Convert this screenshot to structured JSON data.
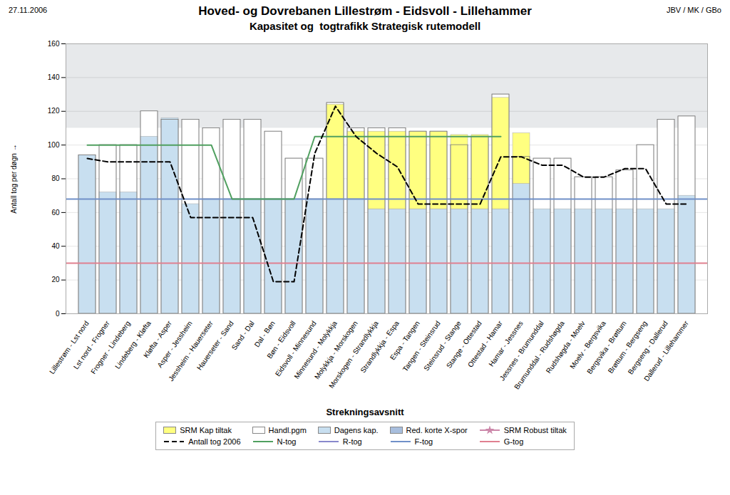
{
  "chart_data": {
    "type": "bar",
    "title": "Hoved- og Dovrebanen Lillestrøm - Eidsvoll - Lillehammer",
    "subtitle": "Kapasitet og  togtrafikk Strategisk rutemodell",
    "annotations": [
      "27.11.2006",
      "JBV / MK / GBo"
    ],
    "x_label": "Strekningsavsnitt",
    "y_label": "Antall tog per døgn",
    "categories": [
      "Lillestrøm - Lst nord",
      "Lst nord - Frogner",
      "Frogner - Lindeberg",
      "Lindeberg - Kløfta",
      "Kløfta - Asper",
      "Asper - Jessheim",
      "Jessheim - Hauerseter",
      "Hauerseter - Sand",
      "Sand - Dal",
      "Dal - Bøn",
      "Bøn - Eidsvoll",
      "Eidsvoll - Minnesund",
      "Minnesund - Molykkja",
      "Molykkja - Morskogen",
      "Morskogen - Strandlykkja",
      "Strandlykkja - Espa",
      "Espa - Tangen",
      "Tangen - Steinsrud",
      "Steinsrud - Stange",
      "Stange - Ottestad",
      "Ottestad - Hamar",
      "Hamar - Jessnes",
      "Jessnes - Brumunddal",
      "Brumunddal - Rudshøgda",
      "Rudshøgda - Moelv",
      "Moelv - Bergsvika",
      "Bergsvika - Brøttum",
      "Brøttum - Bergseng",
      "Bergseng - Dallerud",
      "Dallerud - Lillehammer"
    ],
    "series": [
      {
        "name": "SRM Kap tiltak",
        "type": "bar",
        "stacked": true,
        "color": "#ffff80",
        "values": [
          0,
          0,
          0,
          0,
          0,
          0,
          0,
          0,
          0,
          0,
          0,
          0,
          56,
          40,
          46,
          46,
          46,
          46,
          44,
          44,
          66,
          30,
          0,
          0,
          0,
          0,
          0,
          0,
          0,
          0
        ]
      },
      {
        "name": "Handl.pgm",
        "type": "bar",
        "stacked": false,
        "color": "#ffffff",
        "values": [
          94,
          100,
          100,
          120,
          115,
          115,
          110,
          115,
          115,
          108,
          92,
          92,
          125,
          110,
          110,
          110,
          108,
          108,
          100,
          105,
          130,
          93,
          92,
          92,
          81,
          81,
          85,
          100,
          115,
          117
        ]
      },
      {
        "name": "Dagens kap.",
        "type": "bar",
        "stacked": true,
        "color": "#c8dff0",
        "values": [
          94,
          72,
          72,
          105,
          116,
          65,
          68,
          68,
          68,
          68,
          68,
          68,
          68,
          68,
          62,
          62,
          62,
          62,
          62,
          62,
          62,
          77,
          62,
          62,
          62,
          62,
          62,
          62,
          62,
          70
        ]
      },
      {
        "name": "Red. korte X-spor",
        "type": "bar",
        "color": "#a8bedd",
        "values": [
          null,
          null,
          null,
          null,
          null,
          null,
          null,
          null,
          null,
          null,
          null,
          null,
          null,
          null,
          null,
          null,
          null,
          null,
          null,
          null,
          null,
          null,
          null,
          null,
          null,
          null,
          null,
          null,
          null,
          null
        ]
      },
      {
        "name": "SRM Robust tiltak",
        "type": "line",
        "marker": "star",
        "color": "#cc88aa",
        "values": [
          null,
          null,
          null,
          null,
          null,
          null,
          null,
          null,
          null,
          null,
          null,
          null,
          null,
          null,
          null,
          null,
          null,
          null,
          null,
          null,
          null,
          null,
          null,
          null,
          null,
          null,
          null,
          null,
          null,
          null
        ]
      },
      {
        "name": "Antall tog 2006",
        "type": "line",
        "line_style": "dashed",
        "color": "#000000",
        "values": [
          92,
          90,
          90,
          90,
          90,
          57,
          57,
          57,
          57,
          19,
          19,
          95,
          123,
          105,
          95,
          87,
          65,
          65,
          65,
          65,
          93,
          93,
          88,
          88,
          81,
          81,
          86,
          86,
          65,
          65
        ]
      },
      {
        "name": "N-tog",
        "type": "line",
        "color": "#50a060",
        "values": [
          100,
          100,
          100,
          100,
          100,
          100,
          100,
          68,
          68,
          68,
          68,
          105,
          105,
          105,
          105,
          105,
          105,
          105,
          105,
          105,
          105,
          null,
          null,
          null,
          null,
          null,
          null,
          null,
          null,
          null
        ]
      },
      {
        "name": "R-tog",
        "type": "line",
        "color": "#8888cc",
        "values": [
          null,
          null,
          null,
          null,
          null,
          null,
          null,
          null,
          null,
          null,
          null,
          null,
          null,
          null,
          null,
          null,
          null,
          null,
          null,
          null,
          null,
          null,
          null,
          null,
          null,
          null,
          null,
          null,
          null,
          null
        ]
      },
      {
        "name": "F-tog",
        "type": "hline",
        "color": "#7090c8",
        "value": 68
      },
      {
        "name": "G-tog",
        "type": "hline",
        "color": "#e08090",
        "value": 30
      }
    ],
    "bands": [
      {
        "from": 110,
        "to": 160,
        "color": "#d0d4d8"
      }
    ],
    "ylim": [
      0,
      160
    ],
    "yticks": [
      0,
      20,
      40,
      60,
      80,
      100,
      120,
      140,
      160
    ],
    "grid": true,
    "legend": "bottom"
  }
}
